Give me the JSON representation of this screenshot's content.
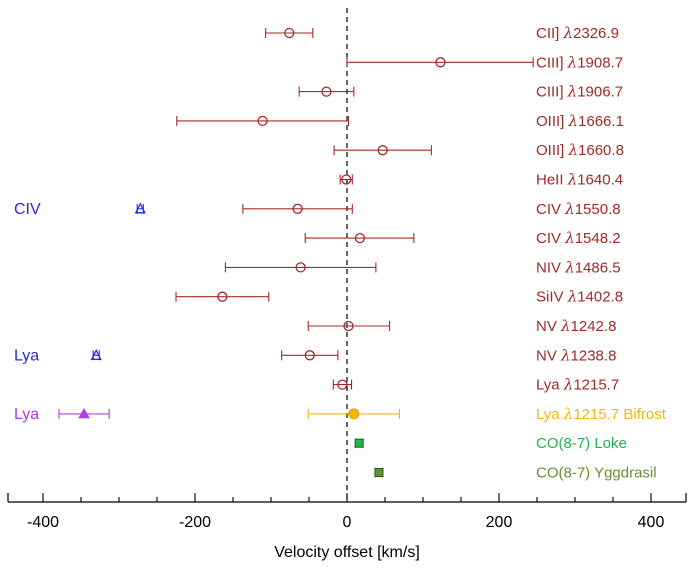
{
  "chart_data": {
    "type": "scatter",
    "xlabel": "Velocity offset [km/s]",
    "xlim": [
      -450,
      450
    ],
    "xticks": [
      -400,
      -200,
      0,
      200,
      400
    ],
    "xtick_labels": [
      "-400",
      "-200",
      "0",
      "200",
      "400"
    ],
    "zero_line": "dashed",
    "grid": false,
    "colors": {
      "uv_lines": "#a52a2a",
      "aux_absorption": "#2929e0",
      "lya_absorption": "#b040e0",
      "bifrost": "#f5b800",
      "loke": "#22b44c",
      "yggdrasil": "#6b8f32"
    },
    "rows": [
      {
        "label": "CII] λ2326.9",
        "x": -76,
        "xerr": [
          31,
          31
        ],
        "marker": "circle-open",
        "color": "#a52a2a"
      },
      {
        "label": "CIII] λ1908.7",
        "x": 123,
        "xerr": [
          123,
          122
        ],
        "marker": "circle-open",
        "color": "#a52a2a"
      },
      {
        "label": "CIII] λ1906.7",
        "x": -27,
        "xerr": [
          36,
          36
        ],
        "marker": "circle-open",
        "color": "#a52a2a"
      },
      {
        "label": "OIII] λ1666.1",
        "x": -111,
        "xerr": [
          113,
          113
        ],
        "marker": "circle-open",
        "color": "#a52a2a"
      },
      {
        "label": "OIII] λ1660.8",
        "x": 47,
        "xerr": [
          64,
          64
        ],
        "marker": "circle-open",
        "color": "#a52a2a"
      },
      {
        "label": "HeII λ1640.4",
        "x": -1,
        "xerr": [
          8,
          8
        ],
        "marker": "circle-open",
        "color": "#a52a2a"
      },
      {
        "label": "CIV λ1550.8",
        "x": -65,
        "xerr": [
          72,
          72
        ],
        "marker": "circle-open",
        "color": "#a52a2a"
      },
      {
        "label": "CIV λ1548.2",
        "x": 17,
        "xerr": [
          72,
          71
        ],
        "marker": "circle-open",
        "color": "#a52a2a"
      },
      {
        "label": "NIV λ1486.5",
        "x": -61,
        "xerr": [
          99,
          99
        ],
        "marker": "circle-open",
        "color": "#a52a2a"
      },
      {
        "label": "SiIV λ1402.8",
        "x": -164,
        "xerr": [
          61,
          61
        ],
        "marker": "circle-open",
        "color": "#a52a2a"
      },
      {
        "label": "NV λ1242.8",
        "x": 2,
        "xerr": [
          53,
          54
        ],
        "marker": "circle-open",
        "color": "#a52a2a"
      },
      {
        "label": "NV λ1238.8",
        "x": -49,
        "xerr": [
          37,
          37
        ],
        "marker": "circle-open",
        "color": "#a52a2a"
      },
      {
        "label": "Lya λ1215.7",
        "x": -6,
        "xerr": [
          12,
          12
        ],
        "marker": "circle-open",
        "color": "#a52a2a"
      },
      {
        "label": "Lya λ1215.7 Bifrost",
        "x": 9,
        "xerr": [
          60,
          60
        ],
        "marker": "circle-filled",
        "color": "#f5b800"
      },
      {
        "label": "CO(8-7) Loke",
        "x": 16,
        "xerr": [
          5,
          5
        ],
        "marker": "square-filled",
        "color": "#22b44c"
      },
      {
        "label": "CO(8-7) Yggdrasil",
        "x": 42,
        "xerr": [
          5,
          5
        ],
        "marker": "square-filled",
        "color": "#6b8f32"
      }
    ],
    "absorption_points": [
      {
        "side_label": "CIV",
        "row": 6,
        "x": -272,
        "xerr": [
          4,
          4
        ],
        "marker": "triangle-open",
        "color": "#2929e0"
      },
      {
        "side_label": "Lya",
        "row": 11,
        "x": -330,
        "xerr": [
          4,
          4
        ],
        "marker": "triangle-open",
        "color": "#2929e0"
      },
      {
        "side_label": "Lya",
        "row": 13,
        "x": -346,
        "xerr": [
          33,
          33
        ],
        "marker": "triangle-filled",
        "color": "#b040e0"
      }
    ]
  }
}
